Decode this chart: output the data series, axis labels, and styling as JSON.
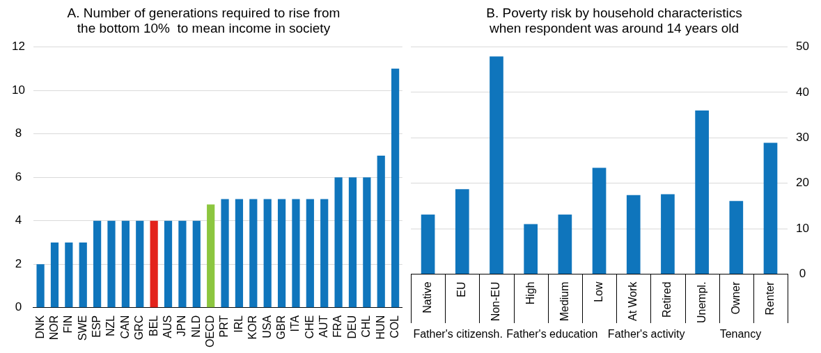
{
  "chart_data": [
    {
      "type": "bar",
      "title": "A. Number of generations required to rise from\nthe bottom 10%  to mean income in society",
      "categories": [
        "DNK",
        "NOR",
        "FIN",
        "SWE",
        "ESP",
        "NZL",
        "CAN",
        "GRC",
        "BEL",
        "AUS",
        "JPN",
        "NLD",
        "OECD",
        "PRT",
        "IRL",
        "KOR",
        "USA",
        "GBR",
        "ITA",
        "CHE",
        "AUT",
        "FRA",
        "DEU",
        "CHL",
        "HUN",
        "COL"
      ],
      "values": [
        2,
        3,
        3,
        3,
        4,
        4,
        4,
        4,
        4,
        4,
        4,
        4,
        4.75,
        5,
        5,
        5,
        5,
        5,
        5,
        5,
        5,
        6,
        6,
        6,
        7,
        11
      ],
      "colors": [
        "#0f75bc",
        "#0f75bc",
        "#0f75bc",
        "#0f75bc",
        "#0f75bc",
        "#0f75bc",
        "#0f75bc",
        "#0f75bc",
        "#e3231b",
        "#0f75bc",
        "#0f75bc",
        "#0f75bc",
        "#8cc63f",
        "#0f75bc",
        "#0f75bc",
        "#0f75bc",
        "#0f75bc",
        "#0f75bc",
        "#0f75bc",
        "#0f75bc",
        "#0f75bc",
        "#0f75bc",
        "#0f75bc",
        "#0f75bc",
        "#0f75bc",
        "#0f75bc"
      ],
      "ylim": [
        0,
        12
      ],
      "yticks": [
        0,
        2,
        4,
        6,
        8,
        10,
        12
      ],
      "grid": "y"
    },
    {
      "type": "bar",
      "title": "B. Poverty risk by household characteristics\nwhen respondent was around 14 years old",
      "categories": [
        "Native",
        "EU",
        "Non-EU",
        "High",
        "Medium",
        "Low",
        "At Work",
        "Retired",
        "Unempl.",
        "Owner",
        "Renter"
      ],
      "values": [
        13.1,
        18.7,
        47.9,
        11.0,
        13.1,
        23.4,
        17.4,
        17.6,
        36.0,
        16.1,
        28.9
      ],
      "color": "#0f75bc",
      "ylim": [
        0,
        50
      ],
      "yticks": [
        0,
        10,
        20,
        30,
        40,
        50
      ],
      "grid": "y",
      "annotations": [
        "Father's citizensh.",
        "Father's education",
        "Father's activity",
        "Tenancy"
      ]
    }
  ]
}
